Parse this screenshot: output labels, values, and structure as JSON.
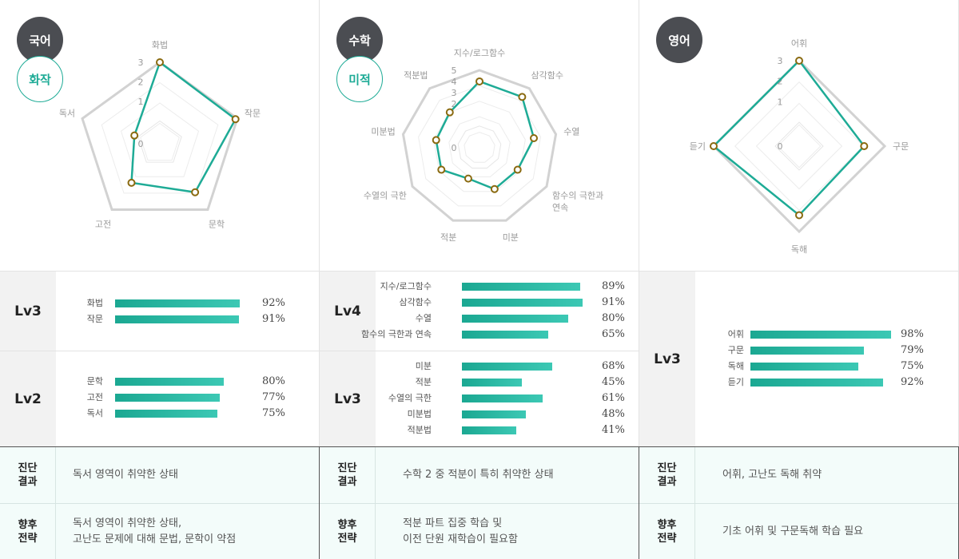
{
  "colors": {
    "accent": "#1eab96",
    "subject_circle": "#4b4d52",
    "grid": "#d9d9d9",
    "point_stroke": "#8a6a10"
  },
  "panels": [
    {
      "subject": "국어",
      "sub": "화작",
      "chart_data": {
        "type": "radar",
        "axes": [
          "화법",
          "작문",
          "문학",
          "고전",
          "독서"
        ],
        "values": [
          3,
          2.9,
          1.9,
          1.3,
          0.2
        ],
        "ticks": [
          "3",
          "2",
          "1",
          "0"
        ],
        "ylim": [
          0,
          3
        ]
      },
      "levels": [
        {
          "level": "Lv3",
          "bars": [
            {
              "name": "화법",
              "pct": 92,
              "label": "92%"
            },
            {
              "name": "작문",
              "pct": 91,
              "label": "91%"
            }
          ]
        },
        {
          "level": "Lv2",
          "bars": [
            {
              "name": "문학",
              "pct": 80,
              "label": "80%"
            },
            {
              "name": "고전",
              "pct": 77,
              "label": "77%"
            },
            {
              "name": "독서",
              "pct": 75,
              "label": "75%"
            }
          ]
        }
      ],
      "diagnosis": {
        "result_label": "진단\n결과",
        "result": "독서 영역이 취약한 상태",
        "strategy_label": "향후\n전략",
        "strategy": "독서 영역이 취약한 상태,\n고난도 문제에 대해 문법, 문학이 약점"
      }
    },
    {
      "subject": "수학",
      "sub": "미적",
      "chart_data": {
        "type": "radar",
        "axes": [
          "지수/로그함수",
          "삼각함수",
          "수열",
          "함수의 극한과 연속",
          "미분",
          "적분",
          "수열의 극한",
          "미분법",
          "적분법"
        ],
        "values": [
          4,
          4,
          3,
          2,
          2,
          1,
          2,
          2,
          2.2
        ],
        "ticks": [
          "5",
          "4",
          "3",
          "2",
          "0"
        ],
        "ylim": [
          0,
          5
        ]
      },
      "levels": [
        {
          "level": "Lv4",
          "bars": [
            {
              "name": "지수/로그함수",
              "pct": 89,
              "label": "89%"
            },
            {
              "name": "삼각함수",
              "pct": 91,
              "label": "91%"
            },
            {
              "name": "수열",
              "pct": 80,
              "label": "80%"
            },
            {
              "name": "함수의 극한과 연속",
              "pct": 65,
              "label": "65%"
            }
          ]
        },
        {
          "level": "Lv3",
          "bars": [
            {
              "name": "미분",
              "pct": 68,
              "label": "68%"
            },
            {
              "name": "적분",
              "pct": 45,
              "label": "45%"
            },
            {
              "name": "수열의 극한",
              "pct": 61,
              "label": "61%"
            },
            {
              "name": "미분법",
              "pct": 48,
              "label": "48%"
            },
            {
              "name": "적분법",
              "pct": 41,
              "label": "41%"
            }
          ]
        }
      ],
      "diagnosis": {
        "result_label": "진단\n결과",
        "result": "수학 2 중 적분이 특히 취약한 상태",
        "strategy_label": "향후\n전략",
        "strategy": "적분 파트 집중 학습 및\n이전 단원 재학습이 필요함"
      }
    },
    {
      "subject": "영어",
      "sub": "",
      "chart_data": {
        "type": "radar",
        "axes": [
          "어휘",
          "구문",
          "독해",
          "듣기"
        ],
        "values": [
          3,
          2,
          2.2,
          3
        ],
        "ticks": [
          "3",
          "2",
          "1",
          "0"
        ],
        "ylim": [
          0,
          3
        ]
      },
      "levels": [
        {
          "level": "Lv3",
          "bars": [
            {
              "name": "어휘",
              "pct": 98,
              "label": "98%"
            },
            {
              "name": "구문",
              "pct": 79,
              "label": "79%"
            },
            {
              "name": "독해",
              "pct": 75,
              "label": "75%"
            },
            {
              "name": "듣기",
              "pct": 92,
              "label": "92%"
            }
          ]
        }
      ],
      "diagnosis": {
        "result_label": "진단\n결과",
        "result": "어휘, 고난도 독해 취약",
        "strategy_label": "향후\n전략",
        "strategy": "기초 어휘 및 구문독해 학습 필요"
      }
    }
  ]
}
